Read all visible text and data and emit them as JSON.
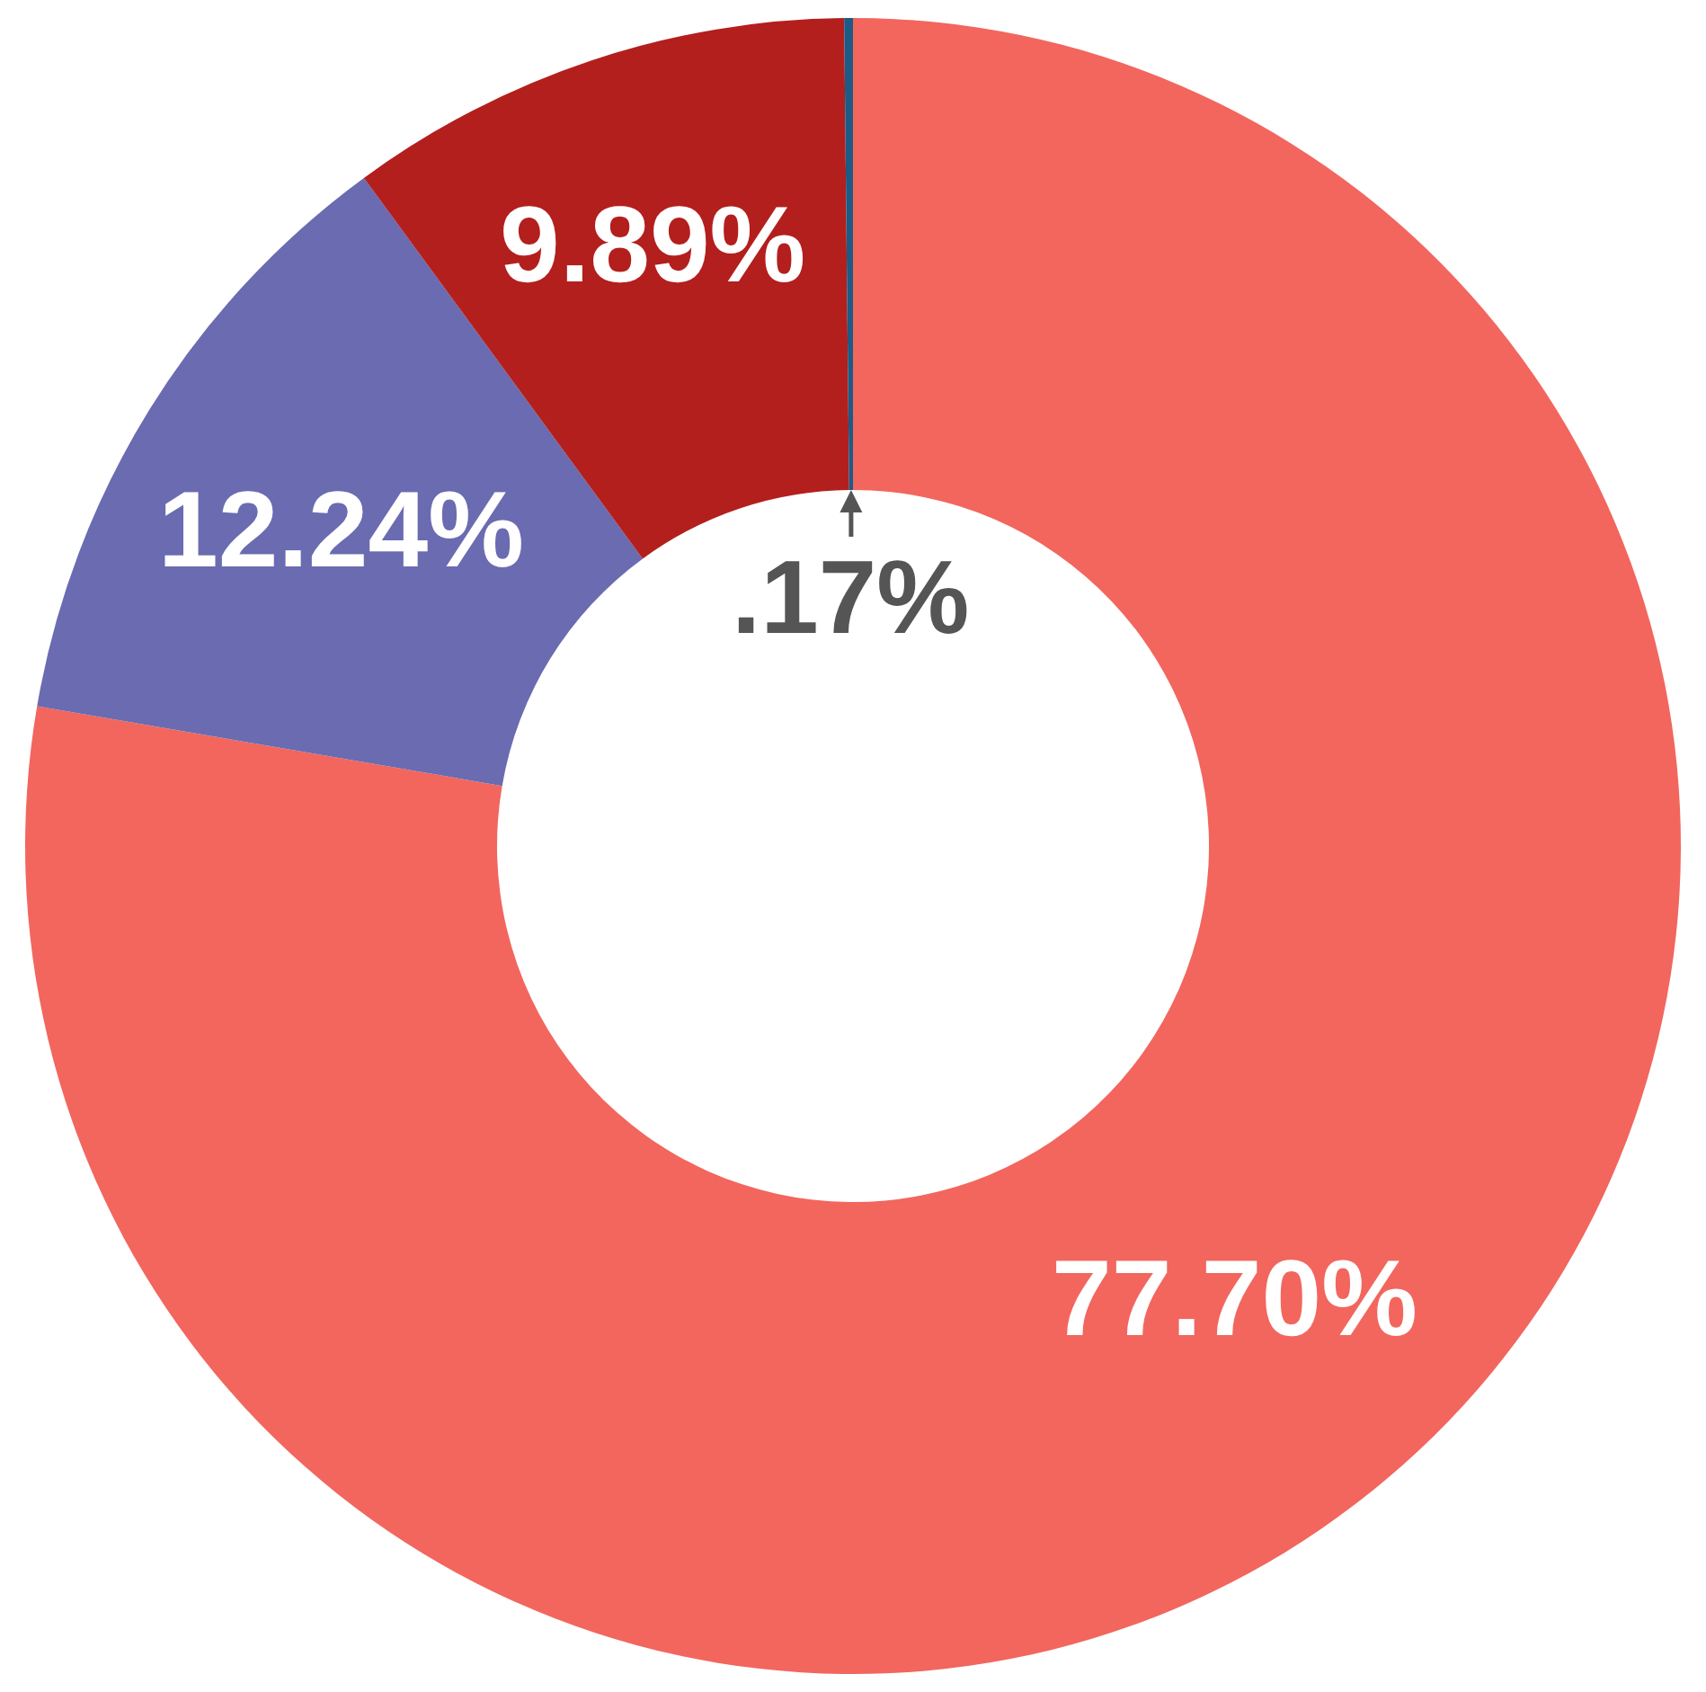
{
  "chart_data": {
    "type": "donut",
    "categories": [
      null,
      null,
      null,
      null
    ],
    "values": [
      77.7,
      12.24,
      9.89,
      0.17
    ],
    "colors": [
      "#f2665e",
      "#6a6bb0",
      "#b31f1d",
      "#1d5a86"
    ],
    "value_labels": [
      "77.70%",
      "12.24%",
      "9.89%",
      ".17%"
    ],
    "legend": false
  }
}
